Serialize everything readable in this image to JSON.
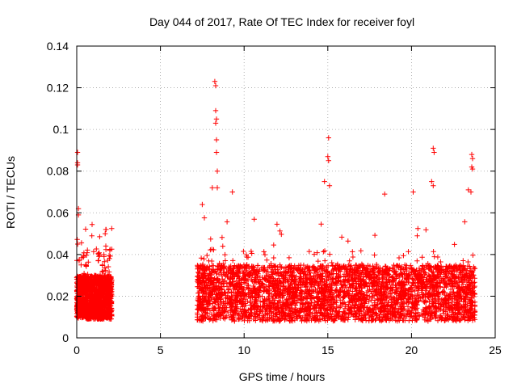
{
  "chart_data": {
    "type": "scatter",
    "title": "Day 044 of 2017, Rate Of TEC Index for receiver foyl",
    "xlabel": "GPS time / hours",
    "ylabel": "ROTI / TECUs",
    "xlim": [
      0,
      25
    ],
    "ylim": [
      0,
      0.14
    ],
    "x_ticks": [
      "0",
      "5",
      "10",
      "15",
      "20",
      "25"
    ],
    "y_ticks": [
      "0",
      "0.02",
      "0.04",
      "0.06",
      "0.08",
      "0.1",
      "0.12",
      "0.14"
    ],
    "grid": true,
    "marker": "+",
    "color": "#ff0000",
    "data_windows": [
      {
        "x_start": 0.0,
        "x_end": 2.1,
        "y_low": 0.009,
        "y_high": 0.03
      },
      {
        "x_start": 7.2,
        "x_end": 23.8,
        "y_low": 0.008,
        "y_high": 0.035
      }
    ],
    "notable_points": [
      {
        "x": 0.05,
        "y": 0.089
      },
      {
        "x": 0.05,
        "y": 0.084
      },
      {
        "x": 0.05,
        "y": 0.083
      },
      {
        "x": 0.1,
        "y": 0.062
      },
      {
        "x": 0.1,
        "y": 0.059
      },
      {
        "x": 1.75,
        "y": 0.052
      },
      {
        "x": 1.7,
        "y": 0.05
      },
      {
        "x": 8.25,
        "y": 0.123
      },
      {
        "x": 8.3,
        "y": 0.121
      },
      {
        "x": 8.3,
        "y": 0.109
      },
      {
        "x": 8.35,
        "y": 0.105
      },
      {
        "x": 8.3,
        "y": 0.103
      },
      {
        "x": 8.35,
        "y": 0.095
      },
      {
        "x": 8.35,
        "y": 0.089
      },
      {
        "x": 8.4,
        "y": 0.08
      },
      {
        "x": 8.1,
        "y": 0.072
      },
      {
        "x": 8.4,
        "y": 0.072
      },
      {
        "x": 7.5,
        "y": 0.064
      },
      {
        "x": 9.3,
        "y": 0.07
      },
      {
        "x": 15.05,
        "y": 0.096
      },
      {
        "x": 15.0,
        "y": 0.087
      },
      {
        "x": 15.05,
        "y": 0.085
      },
      {
        "x": 14.8,
        "y": 0.075
      },
      {
        "x": 15.1,
        "y": 0.073
      },
      {
        "x": 21.3,
        "y": 0.091
      },
      {
        "x": 21.35,
        "y": 0.089
      },
      {
        "x": 21.2,
        "y": 0.075
      },
      {
        "x": 21.3,
        "y": 0.073
      },
      {
        "x": 23.6,
        "y": 0.088
      },
      {
        "x": 23.65,
        "y": 0.086
      },
      {
        "x": 23.6,
        "y": 0.082
      },
      {
        "x": 23.65,
        "y": 0.081
      },
      {
        "x": 23.4,
        "y": 0.071
      },
      {
        "x": 23.55,
        "y": 0.07
      },
      {
        "x": 18.4,
        "y": 0.069
      },
      {
        "x": 20.1,
        "y": 0.07
      }
    ]
  }
}
